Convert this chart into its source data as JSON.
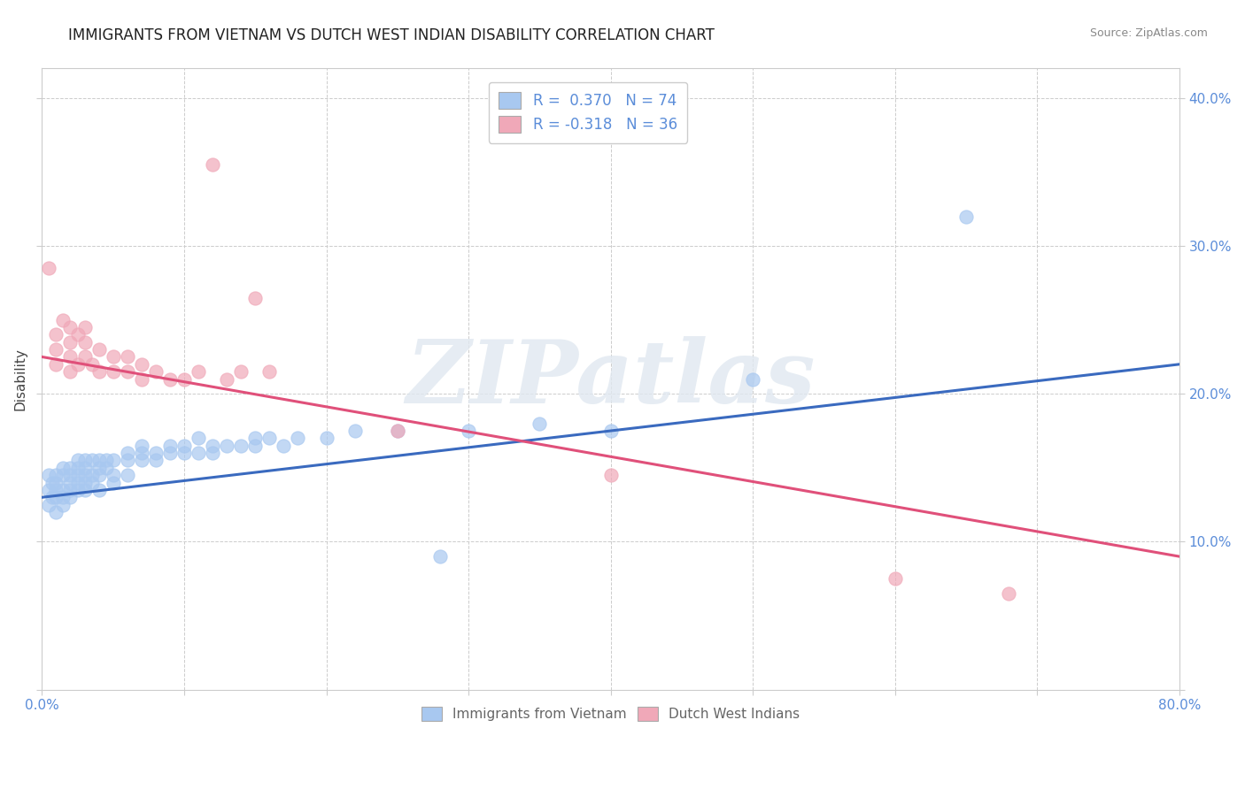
{
  "title": "IMMIGRANTS FROM VIETNAM VS DUTCH WEST INDIAN DISABILITY CORRELATION CHART",
  "source": "Source: ZipAtlas.com",
  "ylabel": "Disability",
  "xlim": [
    0.0,
    0.8
  ],
  "ylim": [
    0.0,
    0.42
  ],
  "blue_color": "#a8c8f0",
  "pink_color": "#f0a8b8",
  "blue_line_color": "#3a6abf",
  "pink_line_color": "#e0507a",
  "watermark_text": "ZIPatlas",
  "legend_blue_label": "R =  0.370   N = 74",
  "legend_pink_label": "R = -0.318   N = 36",
  "blue_scatter": [
    [
      0.005,
      0.135
    ],
    [
      0.005,
      0.145
    ],
    [
      0.005,
      0.125
    ],
    [
      0.007,
      0.14
    ],
    [
      0.007,
      0.13
    ],
    [
      0.01,
      0.14
    ],
    [
      0.01,
      0.13
    ],
    [
      0.01,
      0.145
    ],
    [
      0.01,
      0.12
    ],
    [
      0.01,
      0.135
    ],
    [
      0.015,
      0.135
    ],
    [
      0.015,
      0.145
    ],
    [
      0.015,
      0.125
    ],
    [
      0.015,
      0.15
    ],
    [
      0.015,
      0.13
    ],
    [
      0.02,
      0.14
    ],
    [
      0.02,
      0.13
    ],
    [
      0.02,
      0.145
    ],
    [
      0.02,
      0.135
    ],
    [
      0.02,
      0.15
    ],
    [
      0.025,
      0.135
    ],
    [
      0.025,
      0.145
    ],
    [
      0.025,
      0.15
    ],
    [
      0.025,
      0.155
    ],
    [
      0.025,
      0.14
    ],
    [
      0.03,
      0.14
    ],
    [
      0.03,
      0.145
    ],
    [
      0.03,
      0.135
    ],
    [
      0.03,
      0.155
    ],
    [
      0.03,
      0.15
    ],
    [
      0.035,
      0.145
    ],
    [
      0.035,
      0.155
    ],
    [
      0.035,
      0.14
    ],
    [
      0.04,
      0.145
    ],
    [
      0.04,
      0.155
    ],
    [
      0.04,
      0.15
    ],
    [
      0.04,
      0.135
    ],
    [
      0.045,
      0.15
    ],
    [
      0.045,
      0.155
    ],
    [
      0.05,
      0.145
    ],
    [
      0.05,
      0.155
    ],
    [
      0.05,
      0.14
    ],
    [
      0.06,
      0.155
    ],
    [
      0.06,
      0.145
    ],
    [
      0.06,
      0.16
    ],
    [
      0.07,
      0.155
    ],
    [
      0.07,
      0.16
    ],
    [
      0.07,
      0.165
    ],
    [
      0.08,
      0.16
    ],
    [
      0.08,
      0.155
    ],
    [
      0.09,
      0.16
    ],
    [
      0.09,
      0.165
    ],
    [
      0.1,
      0.16
    ],
    [
      0.1,
      0.165
    ],
    [
      0.11,
      0.16
    ],
    [
      0.11,
      0.17
    ],
    [
      0.12,
      0.165
    ],
    [
      0.12,
      0.16
    ],
    [
      0.13,
      0.165
    ],
    [
      0.14,
      0.165
    ],
    [
      0.15,
      0.165
    ],
    [
      0.15,
      0.17
    ],
    [
      0.16,
      0.17
    ],
    [
      0.17,
      0.165
    ],
    [
      0.18,
      0.17
    ],
    [
      0.2,
      0.17
    ],
    [
      0.22,
      0.175
    ],
    [
      0.25,
      0.175
    ],
    [
      0.28,
      0.09
    ],
    [
      0.3,
      0.175
    ],
    [
      0.35,
      0.18
    ],
    [
      0.4,
      0.175
    ],
    [
      0.5,
      0.21
    ],
    [
      0.65,
      0.32
    ]
  ],
  "pink_scatter": [
    [
      0.005,
      0.285
    ],
    [
      0.01,
      0.24
    ],
    [
      0.01,
      0.23
    ],
    [
      0.01,
      0.22
    ],
    [
      0.015,
      0.25
    ],
    [
      0.02,
      0.235
    ],
    [
      0.02,
      0.225
    ],
    [
      0.02,
      0.215
    ],
    [
      0.02,
      0.245
    ],
    [
      0.025,
      0.24
    ],
    [
      0.025,
      0.22
    ],
    [
      0.03,
      0.235
    ],
    [
      0.03,
      0.225
    ],
    [
      0.03,
      0.245
    ],
    [
      0.035,
      0.22
    ],
    [
      0.04,
      0.23
    ],
    [
      0.04,
      0.215
    ],
    [
      0.05,
      0.225
    ],
    [
      0.05,
      0.215
    ],
    [
      0.06,
      0.215
    ],
    [
      0.06,
      0.225
    ],
    [
      0.07,
      0.22
    ],
    [
      0.07,
      0.21
    ],
    [
      0.08,
      0.215
    ],
    [
      0.09,
      0.21
    ],
    [
      0.1,
      0.21
    ],
    [
      0.11,
      0.215
    ],
    [
      0.12,
      0.355
    ],
    [
      0.13,
      0.21
    ],
    [
      0.14,
      0.215
    ],
    [
      0.15,
      0.265
    ],
    [
      0.16,
      0.215
    ],
    [
      0.25,
      0.175
    ],
    [
      0.4,
      0.145
    ],
    [
      0.6,
      0.075
    ],
    [
      0.68,
      0.065
    ]
  ]
}
